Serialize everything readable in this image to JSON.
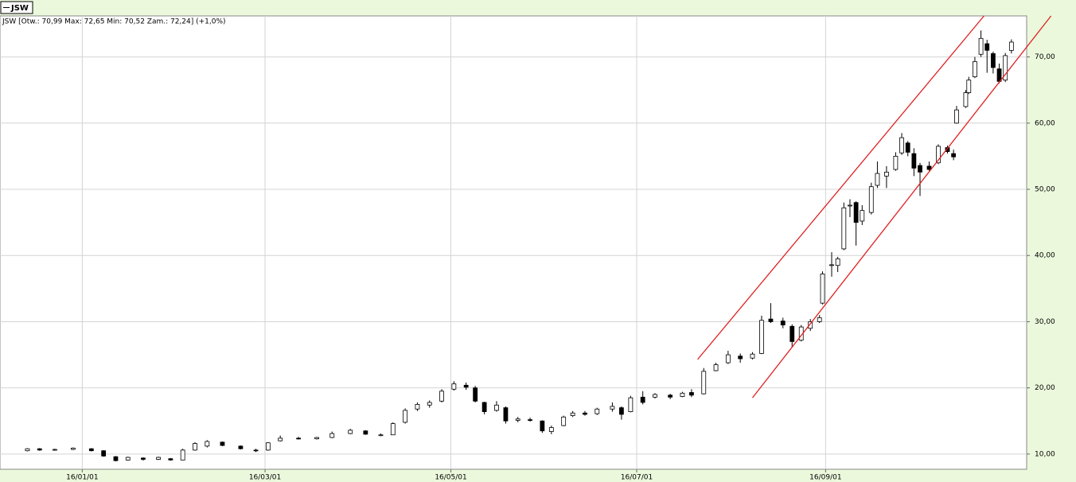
{
  "chart_data": {
    "type": "candlestick",
    "legend": "JSW",
    "info": "JSW [Otw.: 70,99   Max: 72,65   Min: 70,52   Zam.: 72,24]  (+1,0%)",
    "x": [
      "15/12/14",
      "15/12/18",
      "15/12/23",
      "15/12/29",
      "16/01/04",
      "16/01/08",
      "16/01/12",
      "16/01/16",
      "16/01/21",
      "16/01/26",
      "16/01/30",
      "16/02/03",
      "16/02/07",
      "16/02/11",
      "16/02/16",
      "16/02/22",
      "16/02/27",
      "16/03/02",
      "16/03/06",
      "16/03/12",
      "16/03/18",
      "16/03/23",
      "16/03/29",
      "16/04/03",
      "16/04/08",
      "16/04/12",
      "16/04/16",
      "16/04/20",
      "16/04/24",
      "16/04/28",
      "16/05/02",
      "16/05/06",
      "16/05/09",
      "16/05/12",
      "16/05/16",
      "16/05/19",
      "16/05/23",
      "16/05/27",
      "16/05/31",
      "16/06/03",
      "16/06/07",
      "16/06/10",
      "16/06/14",
      "16/06/18",
      "16/06/23",
      "16/06/26",
      "16/06/29",
      "16/07/03",
      "16/07/07",
      "16/07/12",
      "16/07/16",
      "16/07/19",
      "16/07/23",
      "16/07/27",
      "16/07/31",
      "16/08/04",
      "16/08/08",
      "16/08/11",
      "16/08/14",
      "16/08/18",
      "16/08/21",
      "16/08/24",
      "16/08/27",
      "16/08/30",
      "16/08/31",
      "16/09/03",
      "16/09/05",
      "16/09/07",
      "16/09/09",
      "16/09/11",
      "16/09/13",
      "16/09/16",
      "16/09/18",
      "16/09/21",
      "16/09/24",
      "16/09/26",
      "16/09/28",
      "16/09/30",
      "16/10/02",
      "16/10/05",
      "16/10/08",
      "16/10/11",
      "16/10/13",
      "16/10/14",
      "16/10/17",
      "16/10/18",
      "16/10/20",
      "16/10/22",
      "16/10/24",
      "16/10/26",
      "16/10/28",
      "16/10/30",
      "16/11/01"
    ],
    "open": [
      10.5,
      10.8,
      10.6,
      10.7,
      10.8,
      10.5,
      9.6,
      9.1,
      9.4,
      9.2,
      9.3,
      9.1,
      10.6,
      11.2,
      11.8,
      11.2,
      10.6,
      10.6,
      12.0,
      12.4,
      12.3,
      12.5,
      13.1,
      13.5,
      12.9,
      12.9,
      14.8,
      16.8,
      17.4,
      18.0,
      19.8,
      20.4,
      20.0,
      17.8,
      16.6,
      17.0,
      15.1,
      15.2,
      15.0,
      13.4,
      14.3,
      15.8,
      16.2,
      16.1,
      16.8,
      17.0,
      16.4,
      18.6,
      18.6,
      18.9,
      18.7,
      19.3,
      19.1,
      22.6,
      23.8,
      24.8,
      24.5,
      25.2,
      30.4,
      30.1,
      29.3,
      27.2,
      29.0,
      30.0,
      32.8,
      38.5,
      38.5,
      41.0,
      47.5,
      48.0,
      45.2,
      46.5,
      50.6,
      52.0,
      53.0,
      55.5,
      57.0,
      55.4,
      53.6,
      53.5,
      54.0,
      56.3,
      55.4,
      60.0,
      62.5,
      64.6,
      67.0,
      70.4,
      72.0,
      70.5,
      68.2,
      66.5,
      70.99
    ],
    "high": [
      10.9,
      10.9,
      10.8,
      11.0,
      10.9,
      10.6,
      9.7,
      9.6,
      9.5,
      9.6,
      9.4,
      10.8,
      11.8,
      12.1,
      11.9,
      11.3,
      10.8,
      11.8,
      12.8,
      12.6,
      12.6,
      13.4,
      13.8,
      13.6,
      13.1,
      14.8,
      16.9,
      17.8,
      18.1,
      19.8,
      21.0,
      20.8,
      20.3,
      17.9,
      18.0,
      17.2,
      15.6,
      15.5,
      15.1,
      14.3,
      15.8,
      16.5,
      16.5,
      17.0,
      17.8,
      17.2,
      18.8,
      19.5,
      19.2,
      19.1,
      19.4,
      19.8,
      23.0,
      23.8,
      25.6,
      25.2,
      25.4,
      30.9,
      32.8,
      30.6,
      29.6,
      29.5,
      30.4,
      31.0,
      37.6,
      40.5,
      39.8,
      48.0,
      48.5,
      48.2,
      47.6,
      51.0,
      54.2,
      53.5,
      55.6,
      58.5,
      57.3,
      56.2,
      54.0,
      54.2,
      56.8,
      56.6,
      56.0,
      62.6,
      65.0,
      67.0,
      70.0,
      74.0,
      72.6,
      70.8,
      69.0,
      70.6,
      72.65
    ],
    "low": [
      10.4,
      10.5,
      10.5,
      10.6,
      10.4,
      9.6,
      8.9,
      9.0,
      9.0,
      9.1,
      9.0,
      9.1,
      10.5,
      11.0,
      11.2,
      10.7,
      10.3,
      10.5,
      11.9,
      12.2,
      12.2,
      12.4,
      13.0,
      12.9,
      12.7,
      12.9,
      14.6,
      16.5,
      17.0,
      17.8,
      19.6,
      19.7,
      17.8,
      16.0,
      16.4,
      14.6,
      14.8,
      14.9,
      13.2,
      13.0,
      14.2,
      15.6,
      15.8,
      15.9,
      16.4,
      15.2,
      16.3,
      17.5,
      18.4,
      18.3,
      18.6,
      18.6,
      19.0,
      22.5,
      23.6,
      23.8,
      24.3,
      25.1,
      29.8,
      29.0,
      26.2,
      27.0,
      28.6,
      29.8,
      32.6,
      36.8,
      37.5,
      40.8,
      45.8,
      41.5,
      44.6,
      46.2,
      50.2,
      50.2,
      52.8,
      55.2,
      55.0,
      52.0,
      49.0,
      52.8,
      53.8,
      55.4,
      54.4,
      59.9,
      62.3,
      64.4,
      66.8,
      70.0,
      67.6,
      67.5,
      66.0,
      66.2,
      70.52
    ],
    "close": [
      10.8,
      10.6,
      10.7,
      10.9,
      10.5,
      9.7,
      9.0,
      9.5,
      9.2,
      9.5,
      9.1,
      10.6,
      11.6,
      11.9,
      11.3,
      10.8,
      10.5,
      11.7,
      12.4,
      12.3,
      12.5,
      13.1,
      13.6,
      13.0,
      12.9,
      14.6,
      16.6,
      17.5,
      17.8,
      19.5,
      20.6,
      20.1,
      18.0,
      16.4,
      17.4,
      15.0,
      15.3,
      15.1,
      13.5,
      14.0,
      15.6,
      16.2,
      16.0,
      16.8,
      17.2,
      16.0,
      18.5,
      17.8,
      19.0,
      18.6,
      19.2,
      18.9,
      22.5,
      23.5,
      25.0,
      24.4,
      25.1,
      30.2,
      30.0,
      29.5,
      27.0,
      29.2,
      30.0,
      30.6,
      37.2,
      38.6,
      39.5,
      47.2,
      47.6,
      45.0,
      46.8,
      50.4,
      52.4,
      52.6,
      55.0,
      57.8,
      55.6,
      53.2,
      52.6,
      53.0,
      56.5,
      55.7,
      54.9,
      62.0,
      64.6,
      66.5,
      69.3,
      72.8,
      71.0,
      68.4,
      66.3,
      70.2,
      72.24
    ],
    "trendlines": [
      {
        "color": "#e02020",
        "x": [
          "16/07/21",
          "16/10/23"
        ],
        "y": [
          24.3,
          76.2
        ]
      },
      {
        "color": "#e02020",
        "x": [
          "16/08/08",
          "16/11/14"
        ],
        "y": [
          18.5,
          76.2
        ]
      }
    ],
    "xlim": [
      "15/12/05",
      "16/11/06"
    ],
    "xticks": [
      "16/01/01",
      "16/03/01",
      "16/05/01",
      "16/07/01",
      "16/09/01"
    ],
    "ylim": [
      7.7,
      76.2
    ],
    "yticks": [
      {
        "value": 10,
        "label": "10,00"
      },
      {
        "value": 20,
        "label": "20,00"
      },
      {
        "value": 30,
        "label": "30,00"
      },
      {
        "value": 40,
        "label": "40,00"
      },
      {
        "value": 50,
        "label": "50,00"
      },
      {
        "value": 60,
        "label": "60,00"
      },
      {
        "value": 70,
        "label": "70,00"
      }
    ],
    "grid": true
  }
}
